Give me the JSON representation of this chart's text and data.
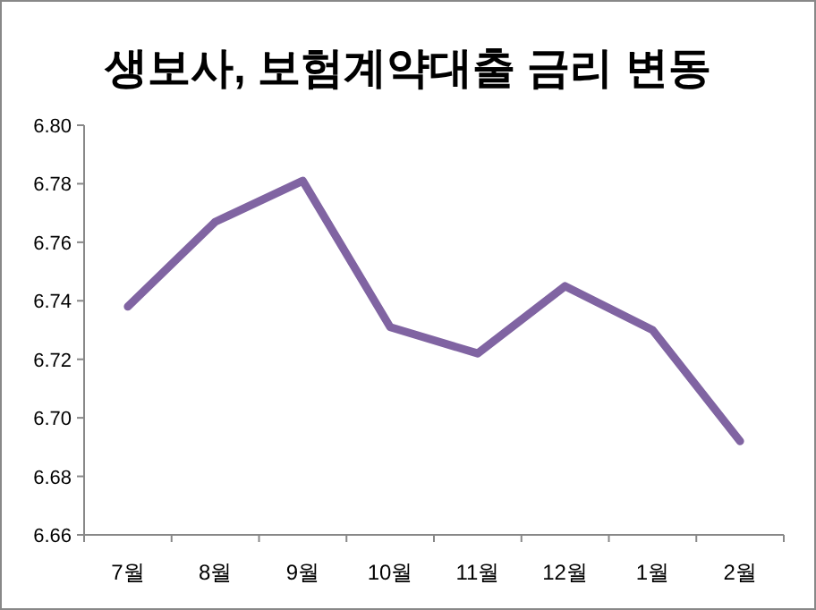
{
  "chart_data": {
    "type": "line",
    "title": "생보사, 보험계약대출 금리 변동",
    "categories": [
      "7월",
      "8월",
      "9월",
      "10월",
      "11월",
      "12월",
      "1월",
      "2월"
    ],
    "series": [
      {
        "color": "#8064a2",
        "values": [
          6.738,
          6.767,
          6.781,
          6.731,
          6.722,
          6.745,
          6.73,
          6.692
        ]
      }
    ],
    "ylim": [
      6.66,
      6.8
    ],
    "yticks": [
      {
        "value": 6.66,
        "label": "6.66"
      },
      {
        "value": 6.68,
        "label": "6.68"
      },
      {
        "value": 6.7,
        "label": "6.70"
      },
      {
        "value": 6.72,
        "label": "6.72"
      },
      {
        "value": 6.74,
        "label": "6.74"
      },
      {
        "value": 6.76,
        "label": "6.76"
      },
      {
        "value": 6.78,
        "label": "6.78"
      },
      {
        "value": 6.8,
        "label": "6.80"
      }
    ],
    "marker": "none",
    "line_style": "solid"
  }
}
